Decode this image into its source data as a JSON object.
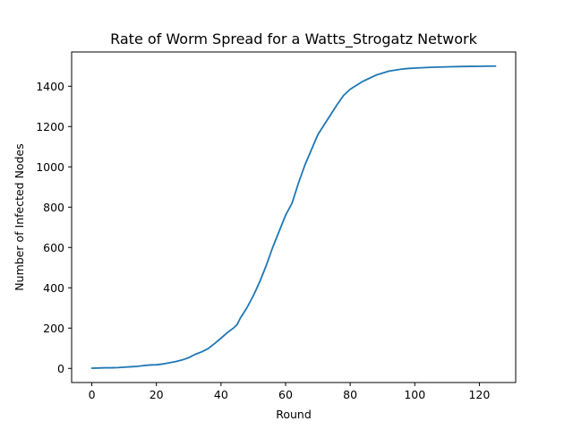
{
  "chart_data": {
    "type": "line",
    "title": "Rate of Worm Spread for a Watts_Strogatz Network",
    "xlabel": "Round",
    "ylabel": "Number of Infected Nodes",
    "xlim": [
      -6.25,
      131.25
    ],
    "ylim": [
      -70,
      1570
    ],
    "xticks": [
      0,
      20,
      40,
      60,
      80,
      100,
      120
    ],
    "yticks": [
      0,
      200,
      400,
      600,
      800,
      1000,
      1200,
      1400
    ],
    "grid": false,
    "legend": "none",
    "series_color": "#1f77b4",
    "series": [
      {
        "x": [
          0,
          2,
          4,
          6,
          8,
          10,
          12,
          14,
          16,
          18,
          20,
          22,
          24,
          26,
          28,
          30,
          32,
          34,
          36,
          38,
          40,
          42,
          44,
          45,
          46,
          48,
          50,
          52,
          54,
          56,
          58,
          60,
          62,
          63,
          64,
          66,
          68,
          70,
          72,
          74,
          76,
          78,
          80,
          82,
          84,
          86,
          88,
          90,
          92,
          94,
          96,
          98,
          100,
          105,
          110,
          115,
          120,
          125
        ],
        "values": [
          1,
          2,
          3,
          3,
          4,
          6,
          8,
          10,
          14,
          17,
          18,
          22,
          28,
          34,
          42,
          53,
          70,
          82,
          98,
          123,
          150,
          178,
          202,
          218,
          250,
          300,
          360,
          430,
          510,
          600,
          680,
          760,
          820,
          870,
          920,
          1010,
          1085,
          1160,
          1210,
          1260,
          1310,
          1355,
          1385,
          1405,
          1425,
          1440,
          1455,
          1465,
          1475,
          1480,
          1485,
          1488,
          1490,
          1494,
          1496,
          1498,
          1499,
          1500
        ]
      }
    ]
  }
}
